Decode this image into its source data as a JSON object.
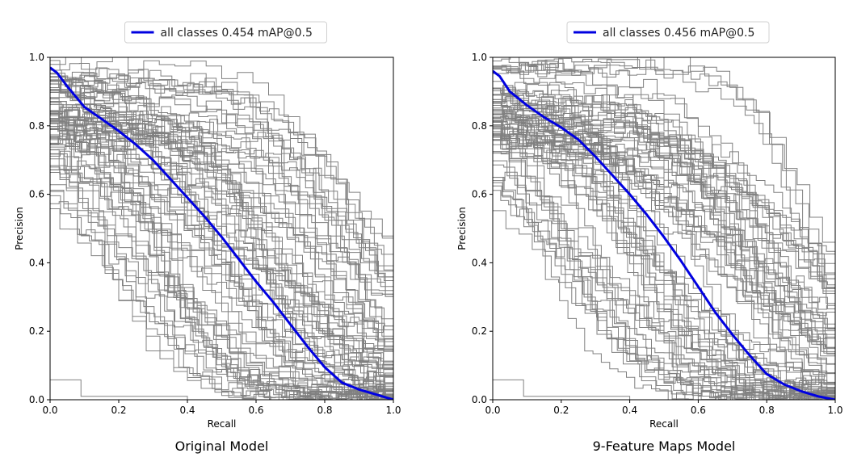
{
  "chart_data": [
    {
      "type": "line",
      "caption": "Original Model",
      "xlabel": "Recall",
      "ylabel": "Precision",
      "xlim": [
        0.0,
        1.0
      ],
      "ylim": [
        0.0,
        1.0
      ],
      "xticks": [
        "0.0",
        "0.2",
        "0.4",
        "0.6",
        "0.8",
        "1.0"
      ],
      "yticks": [
        "0.0",
        "0.2",
        "0.4",
        "0.6",
        "0.8",
        "1.0"
      ],
      "grid": false,
      "legend_position": "top-center",
      "per_class_color": "#808080",
      "mean_color": "#0000e0",
      "series": [
        {
          "name": "all classes 0.454 mAP@0.5",
          "role": "mean",
          "x": [
            0.0,
            0.02,
            0.05,
            0.1,
            0.15,
            0.2,
            0.25,
            0.3,
            0.35,
            0.4,
            0.45,
            0.5,
            0.55,
            0.6,
            0.65,
            0.7,
            0.75,
            0.8,
            0.85,
            0.9,
            0.95,
            1.0
          ],
          "y": [
            0.97,
            0.955,
            0.915,
            0.855,
            0.82,
            0.785,
            0.745,
            0.7,
            0.645,
            0.59,
            0.535,
            0.475,
            0.41,
            0.345,
            0.285,
            0.22,
            0.155,
            0.095,
            0.05,
            0.03,
            0.015,
            0.0
          ]
        }
      ]
    },
    {
      "type": "line",
      "caption": "9-Feature Maps Model",
      "xlabel": "Recall",
      "ylabel": "Precision",
      "xlim": [
        0.0,
        1.0
      ],
      "ylim": [
        0.0,
        1.0
      ],
      "xticks": [
        "0.0",
        "0.2",
        "0.4",
        "0.6",
        "0.8",
        "1.0"
      ],
      "yticks": [
        "0.0",
        "0.2",
        "0.4",
        "0.6",
        "0.8",
        "1.0"
      ],
      "grid": false,
      "legend_position": "top-center",
      "per_class_color": "#808080",
      "mean_color": "#0000e0",
      "series": [
        {
          "name": "all classes 0.456 mAP@0.5",
          "role": "mean",
          "x": [
            0.0,
            0.02,
            0.05,
            0.1,
            0.15,
            0.2,
            0.25,
            0.3,
            0.35,
            0.4,
            0.45,
            0.5,
            0.55,
            0.6,
            0.65,
            0.7,
            0.75,
            0.8,
            0.85,
            0.9,
            0.95,
            1.0
          ],
          "y": [
            0.96,
            0.945,
            0.9,
            0.86,
            0.825,
            0.795,
            0.76,
            0.71,
            0.655,
            0.6,
            0.54,
            0.475,
            0.405,
            0.33,
            0.255,
            0.19,
            0.13,
            0.075,
            0.045,
            0.025,
            0.01,
            0.0
          ]
        }
      ]
    }
  ]
}
